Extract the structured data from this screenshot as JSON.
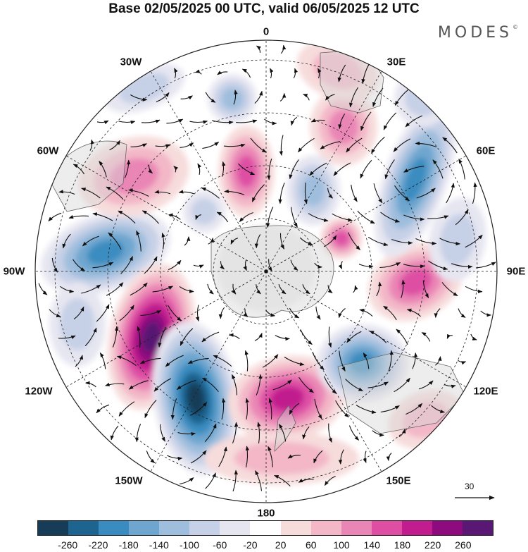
{
  "title": "Base 02/05/2025 00 UTC, valid 06/05/2025 12 UTC",
  "brand": "MODES",
  "brand_mark": "©",
  "longitude_labels": [
    "0",
    "30E",
    "60E",
    "90E",
    "120E",
    "150E",
    "180",
    "150W",
    "120W",
    "90W",
    "60W",
    "30W"
  ],
  "vector_reference": {
    "label": "30",
    "value": 30
  },
  "colorbar": {
    "colors": [
      "#163c58",
      "#1d6490",
      "#3a8cc0",
      "#6ea6cf",
      "#9fbedd",
      "#c6d0e6",
      "#e6e6f1",
      "#ffffff",
      "#f7dcdc",
      "#f3b7c8",
      "#ea86b5",
      "#de4fa4",
      "#c11d8e",
      "#8e0a7f",
      "#581873"
    ],
    "tick_labels": [
      "-260",
      "-220",
      "-180",
      "-140",
      "-100",
      "-60",
      "-20",
      "20",
      "60",
      "100",
      "140",
      "180",
      "220",
      "260"
    ]
  }
}
